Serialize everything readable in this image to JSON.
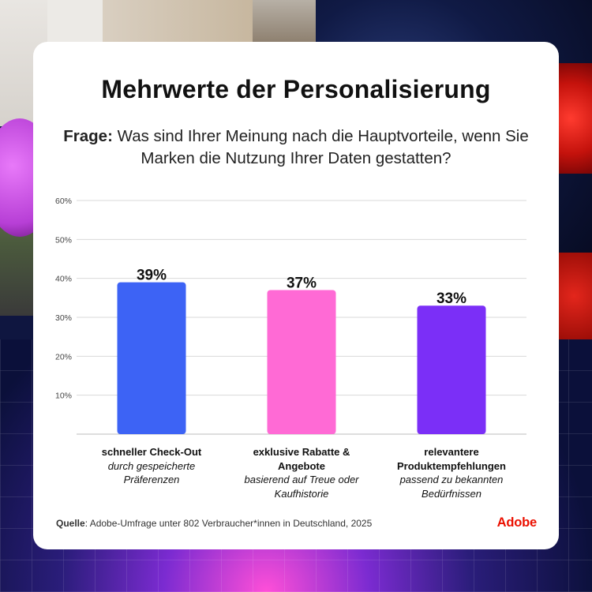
{
  "title": "Mehrwerte der Personalisierung",
  "question": {
    "label": "Frage:",
    "text": " Was sind Ihrer Meinung nach die Hauptvorteile, wenn Sie Marken die Nutzung Ihrer Daten gestatten?"
  },
  "chart_data": {
    "type": "bar",
    "title": "Mehrwerte der Personalisierung",
    "xlabel": "",
    "ylabel": "",
    "ylim": [
      0,
      60
    ],
    "yticks": [
      "10%",
      "20%",
      "30%",
      "40%",
      "50%",
      "60%"
    ],
    "ytick_values": [
      10,
      20,
      30,
      40,
      50,
      60
    ],
    "grid": true,
    "categories": [
      {
        "main": "schneller Check-Out",
        "sub": "durch gespeicherte Präferenzen"
      },
      {
        "main": "exklusive Rabatte & Angebote",
        "sub": "basierend auf Treue oder Kaufhistorie"
      },
      {
        "main": "relevantere Produktempfehlungen",
        "sub": "passend zu bekannten Bedürfnissen"
      }
    ],
    "values": [
      39,
      37,
      33
    ],
    "value_labels": [
      "39%",
      "37%",
      "33%"
    ],
    "colors": [
      "#3d63f5",
      "#ff6ad5",
      "#7b2ff7"
    ]
  },
  "source": {
    "label": "Quelle",
    "text": ": Adobe-Umfrage unter 802 Verbraucher*innen in Deutschland, 2025"
  },
  "brand": "Adobe"
}
